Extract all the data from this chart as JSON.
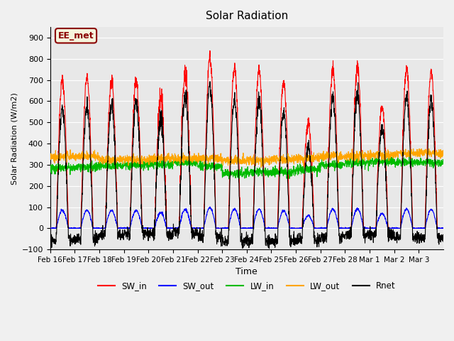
{
  "title": "Solar Radiation",
  "ylabel": "Solar Radiation (W/m2)",
  "xlabel": "Time",
  "ylim": [
    -100,
    950
  ],
  "yticks": [
    -100,
    0,
    100,
    200,
    300,
    400,
    500,
    600,
    700,
    800,
    900
  ],
  "annotation_text": "EE_met",
  "annotation_color": "#8B0000",
  "annotation_bg": "#F5F5DC",
  "plot_bg": "#E8E8E8",
  "fig_bg": "#F0F0F0",
  "grid_color": "#FFFFFF",
  "series_colors": {
    "SW_in": "#FF0000",
    "SW_out": "#0000FF",
    "LW_in": "#00BB00",
    "LW_out": "#FFA500",
    "Rnet": "#000000"
  },
  "xtick_labels": [
    "Feb 16",
    "Feb 17",
    "Feb 18",
    "Feb 19",
    "Feb 20",
    "Feb 21",
    "Feb 22",
    "Feb 23",
    "Feb 24",
    "Feb 25",
    "Feb 26",
    "Feb 27",
    "Feb 28",
    "Mar 1",
    "Mar 2",
    "Mar 3"
  ],
  "n_days": 16,
  "points_per_day": 144,
  "sw_peaks": [
    700,
    710,
    700,
    700,
    610,
    730,
    810,
    760,
    750,
    690,
    500,
    750,
    760,
    580,
    750,
    740
  ],
  "lw_in_base": [
    285,
    288,
    295,
    300,
    305,
    310,
    295,
    260,
    265,
    265,
    280,
    300,
    310,
    315,
    310,
    310
  ],
  "lw_out_base": [
    340,
    340,
    325,
    325,
    330,
    330,
    330,
    320,
    320,
    325,
    330,
    340,
    340,
    345,
    355,
    355
  ]
}
